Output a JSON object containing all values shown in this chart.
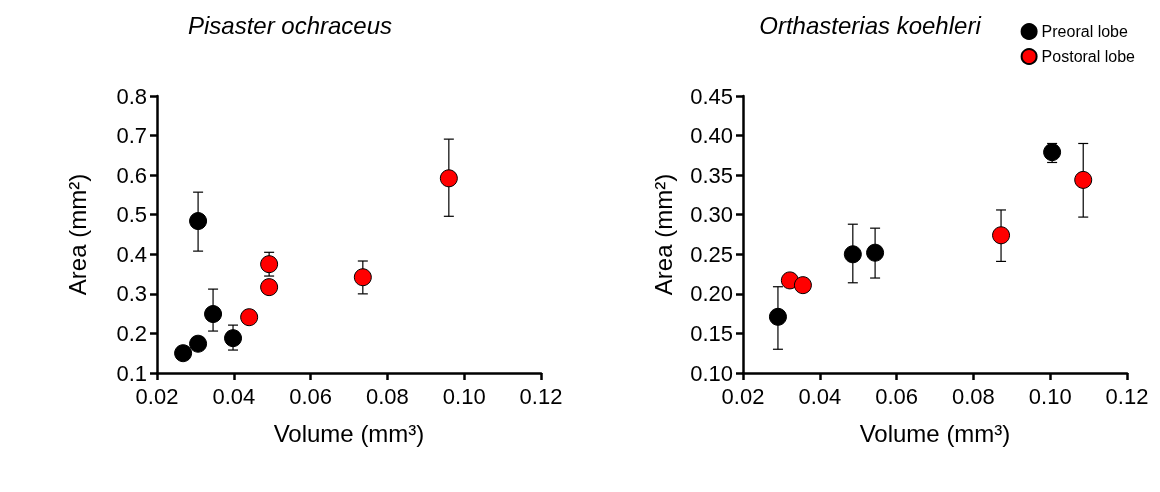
{
  "chart_data": [
    {
      "type": "scatter",
      "title": "Pisaster ochraceus",
      "xlabel": "Volume (mm³)",
      "ylabel": "Area (mm²)",
      "xlim": [
        0.02,
        0.12
      ],
      "xticks": [
        0.02,
        0.04,
        0.06,
        0.08,
        {
          "value": 0.1,
          "label": "0.10"
        },
        0.12
      ],
      "ylim": [
        0.1,
        0.8
      ],
      "yticks": [
        0.1,
        0.2,
        0.3,
        0.4,
        0.5,
        0.6,
        0.7,
        0.8
      ],
      "marker": "circle",
      "grid": false,
      "legend": false,
      "series": [
        {
          "color": "#000000",
          "x": [
            0.0268,
            0.0307,
            0.0307,
            0.0346,
            0.0398
          ],
          "values": [
            0.15,
            0.174,
            0.484,
            0.249,
            0.188
          ],
          "errors": [
            null,
            null,
            [
              0.408,
              0.557
            ],
            [
              0.206,
              0.312
            ],
            [
              0.158,
              0.221
            ]
          ]
        },
        {
          "color": "#ff0000",
          "x": [
            0.044,
            0.0492,
            0.0492,
            0.0736,
            0.096
          ],
          "values": [
            0.241,
            0.375,
            0.317,
            0.342,
            0.592
          ],
          "errors": [
            null,
            [
              0.345,
              0.405
            ],
            null,
            [
              0.3,
              0.383
            ],
            [
              0.496,
              0.691
            ]
          ]
        }
      ]
    },
    {
      "type": "scatter",
      "title": "Orthasterias koehleri",
      "xlabel": "Volume (mm³)",
      "ylabel": "Area (mm²)",
      "xlim": [
        0.02,
        0.12
      ],
      "xticks": [
        0.02,
        0.04,
        0.06,
        0.08,
        {
          "value": 0.1,
          "label": "0.10"
        },
        0.12
      ],
      "ylim": [
        0.1,
        0.45
      ],
      "yticks": [
        {
          "value": 0.1,
          "label": "0.10"
        },
        0.15,
        {
          "value": 0.2,
          "label": "0.20"
        },
        0.25,
        {
          "value": 0.3,
          "label": "0.30"
        },
        0.35,
        {
          "value": 0.4,
          "label": "0.40"
        },
        0.45
      ],
      "marker": "circle",
      "grid": false,
      "legend": "top right",
      "series": [
        {
          "name": "Preoral lobe",
          "color": "#000000",
          "x": [
            0.0291,
            0.0486,
            0.0544,
            0.1005
          ],
          "values": [
            0.171,
            0.25,
            0.252,
            0.379
          ],
          "errors": [
            [
              0.13,
              0.209
            ],
            [
              0.214,
              0.288
            ],
            [
              0.22,
              0.283
            ],
            [
              0.366,
              0.39
            ]
          ]
        },
        {
          "name": "Postoral lobe",
          "color": "#ff0000",
          "x": [
            0.0322,
            0.0356,
            0.0872,
            0.1086
          ],
          "values": [
            0.217,
            0.211,
            0.274,
            0.344
          ],
          "errors": [
            null,
            null,
            [
              0.241,
              0.306
            ],
            [
              0.297,
              0.39
            ]
          ]
        }
      ]
    }
  ]
}
